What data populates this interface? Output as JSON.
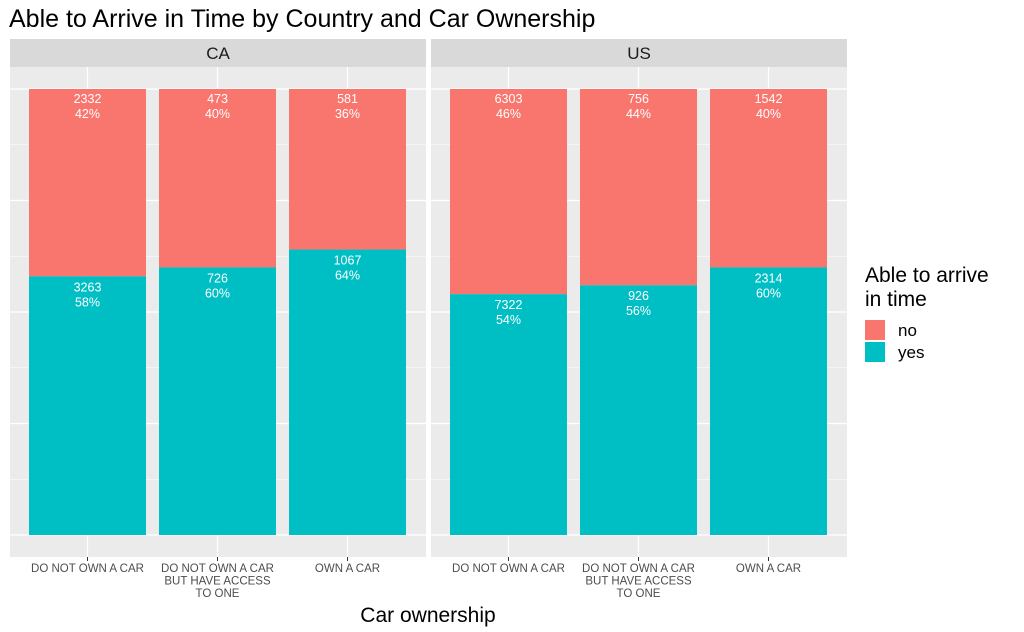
{
  "chart_data": {
    "type": "bar",
    "stacked": "fill",
    "title": "Able to Arrive in Time by Country and Car Ownership",
    "xlabel": "Car ownership",
    "ylabel": "",
    "ylim": [
      0,
      1
    ],
    "grid": true,
    "legend": {
      "title_lines": [
        "Able to arrive",
        "in time"
      ],
      "placement": "right",
      "entries": [
        {
          "label": "no",
          "color": "#F8766D"
        },
        {
          "label": "yes",
          "color": "#00BFC4"
        }
      ]
    },
    "categories": [
      [
        "DO NOT OWN A CAR"
      ],
      [
        "DO NOT OWN A CAR",
        "BUT HAVE ACCESS",
        "TO ONE"
      ],
      [
        "OWN A CAR"
      ]
    ],
    "panels": [
      {
        "name": "CA",
        "bars": [
          {
            "no": {
              "count": "2332",
              "pct": "42%",
              "share": 0.42
            },
            "yes": {
              "count": "3263",
              "pct": "58%",
              "share": 0.58
            }
          },
          {
            "no": {
              "count": "473",
              "pct": "40%",
              "share": 0.4
            },
            "yes": {
              "count": "726",
              "pct": "60%",
              "share": 0.6
            }
          },
          {
            "no": {
              "count": "581",
              "pct": "36%",
              "share": 0.36
            },
            "yes": {
              "count": "1067",
              "pct": "64%",
              "share": 0.64
            }
          }
        ]
      },
      {
        "name": "US",
        "bars": [
          {
            "no": {
              "count": "6303",
              "pct": "46%",
              "share": 0.46
            },
            "yes": {
              "count": "7322",
              "pct": "54%",
              "share": 0.54
            }
          },
          {
            "no": {
              "count": "756",
              "pct": "44%",
              "share": 0.44
            },
            "yes": {
              "count": "926",
              "pct": "56%",
              "share": 0.56
            }
          },
          {
            "no": {
              "count": "1542",
              "pct": "40%",
              "share": 0.4
            },
            "yes": {
              "count": "2314",
              "pct": "60%",
              "share": 0.6
            }
          }
        ]
      }
    ]
  }
}
